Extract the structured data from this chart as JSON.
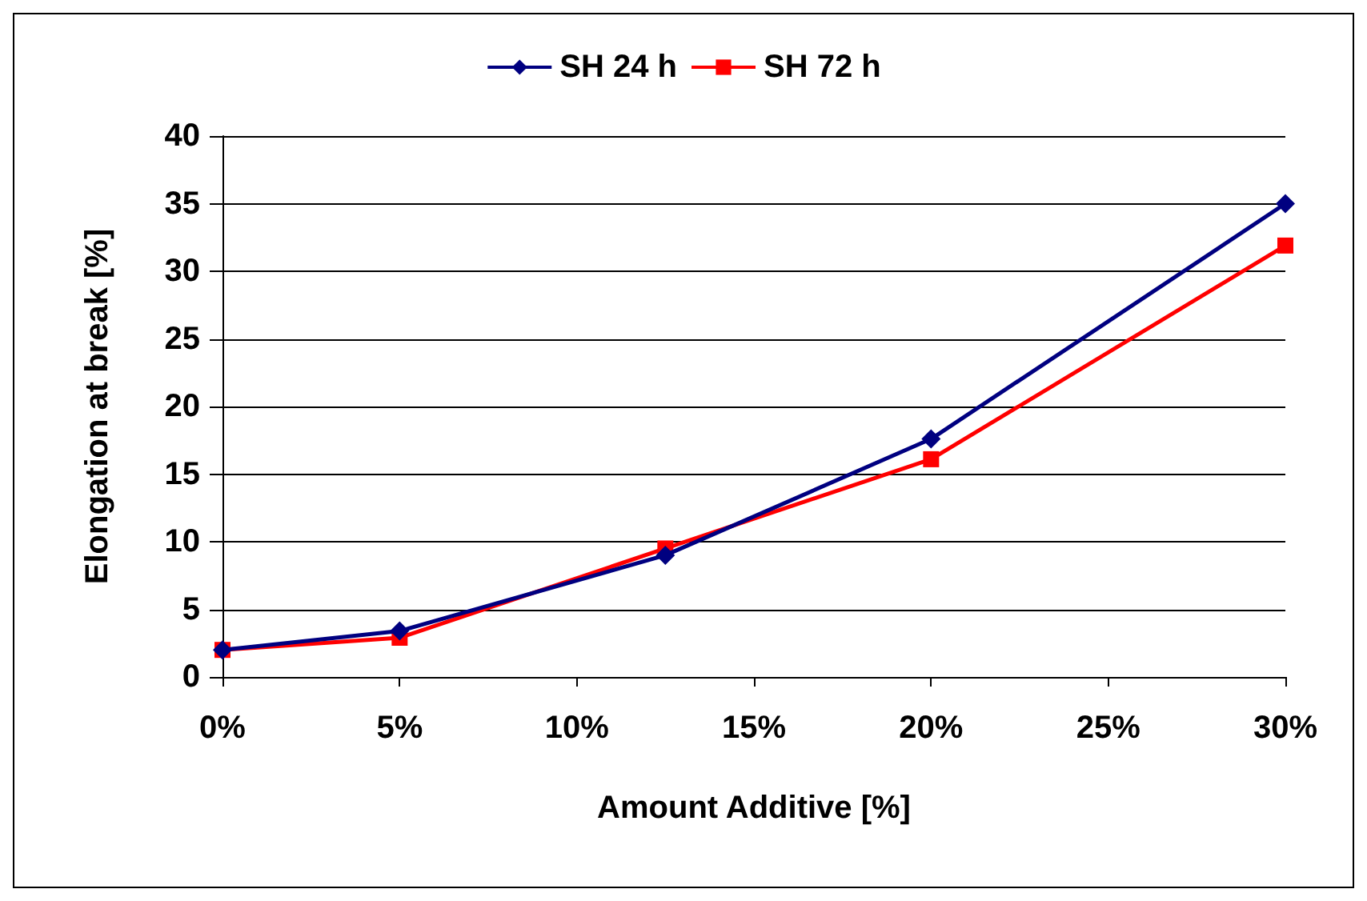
{
  "chart_data": {
    "type": "line",
    "xlabel": "Amount Additive [%]",
    "ylabel": "Elongation at break [%]",
    "x": [
      0,
      5,
      12.5,
      20,
      30
    ],
    "series": [
      {
        "name": "SH 24 h",
        "color": "#000080",
        "marker": "diamond",
        "values": [
          2,
          3.4,
          9,
          17.6,
          35
        ]
      },
      {
        "name": "SH 72 h",
        "color": "#ff0000",
        "marker": "square",
        "values": [
          2,
          2.9,
          9.5,
          16.1,
          31.9
        ]
      }
    ],
    "xlim": [
      0,
      30
    ],
    "xticks": [
      {
        "value": 0,
        "label": "0%"
      },
      {
        "value": 5,
        "label": "5%"
      },
      {
        "value": 10,
        "label": "10%"
      },
      {
        "value": 15,
        "label": "15%"
      },
      {
        "value": 20,
        "label": "20%"
      },
      {
        "value": 25,
        "label": "25%"
      },
      {
        "value": 30,
        "label": "30%"
      }
    ],
    "ylim": [
      0,
      40
    ],
    "yticks": [
      0,
      5,
      10,
      15,
      20,
      25,
      30,
      35,
      40
    ],
    "grid": "y",
    "legend": "top",
    "line_style": "solid"
  }
}
